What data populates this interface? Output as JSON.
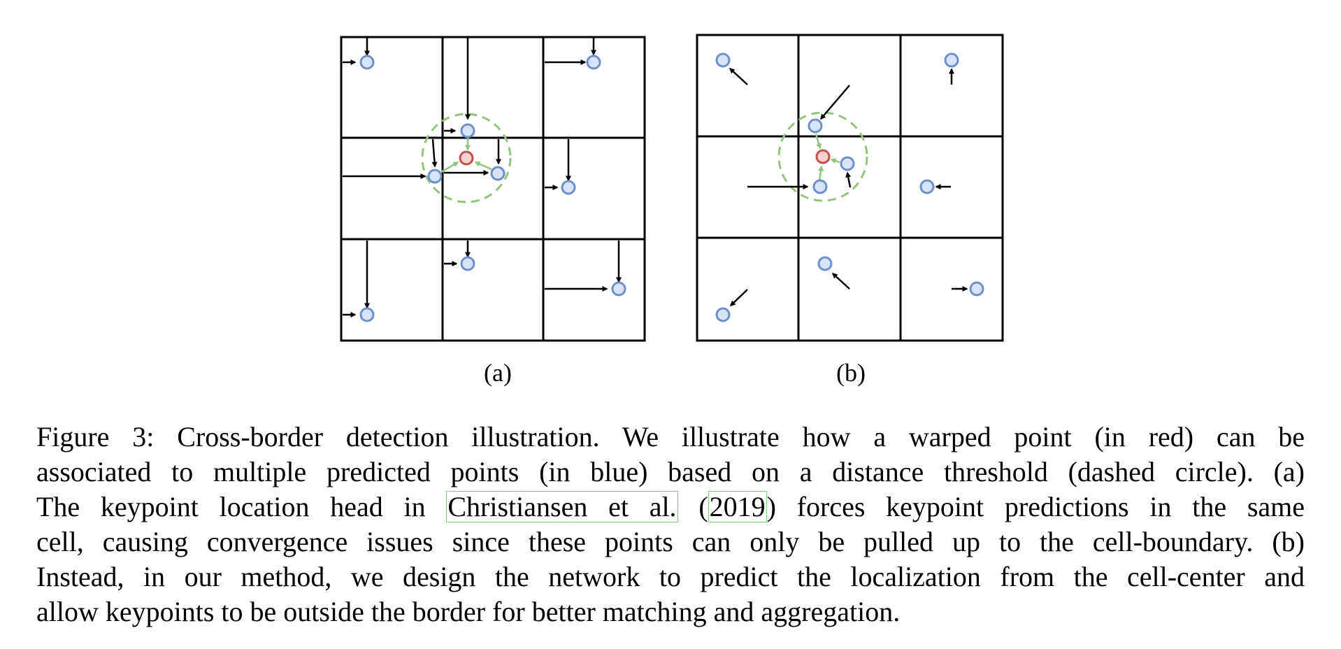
{
  "figure": {
    "panels": [
      {
        "id": "a",
        "label": "(a)"
      },
      {
        "id": "b",
        "label": "(b)"
      }
    ],
    "colors": {
      "grid": "#000000",
      "predicted_point_fill": "#d6e4f7",
      "predicted_point_stroke": "#6f8fc8",
      "warped_point_fill": "#f6d2cc",
      "warped_point_stroke": "#c0504d",
      "threshold_circle": "#93c47d",
      "citation_box": "#7fd07f"
    }
  },
  "caption": {
    "label": "Figure 3:",
    "text_1": "Cross-border detection illustration.  We illustrate how a warped point (in red) can be",
    "line2": "associated to multiple predicted points (in blue) based on a distance threshold (dashed circle). (a)",
    "line3_pre": "The keypoint location head in",
    "cite_authors": "Christiansen et al.",
    "cite_open": "(",
    "cite_year": "2019",
    "line3_post": ") forces keypoint predictions in the same",
    "line4": "cell, causing convergence issues since these points can only be pulled up to the cell-boundary. (b)",
    "line5": "Instead, in our method, we design the network to predict the localization from the cell-center and",
    "line6": "allow keypoints to be outside the border for better matching and aggregation."
  }
}
